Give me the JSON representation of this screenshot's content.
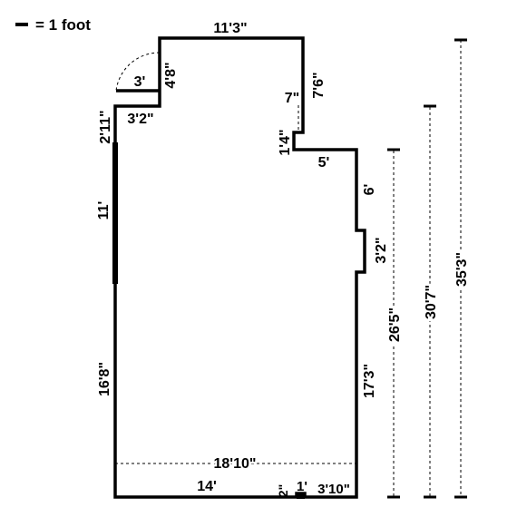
{
  "legend": {
    "label": "= 1 foot"
  },
  "dimensions": {
    "top_wall": "11'3\"",
    "door_width": "3'",
    "door_wall": "4'8\"",
    "step_width": "3'2\"",
    "left_upper": "2'11\"",
    "left_window": "11'",
    "left_lower": "16'8\"",
    "right_upper": "7'6\"",
    "inset_width": "7\"",
    "inset_height": "1'4\"",
    "ledge": "5'",
    "right_mid": "6'",
    "bump": "3'2\"",
    "right_lower": "17'3\"",
    "bottom_left": "14'",
    "bottom_notch_h": "2\"",
    "bottom_notch_w": "1'",
    "bottom_right": "3'10\"",
    "width_total": "18'10\"",
    "height_1": "26'5\"",
    "height_2": "30'7\"",
    "height_3": "35'3\""
  }
}
